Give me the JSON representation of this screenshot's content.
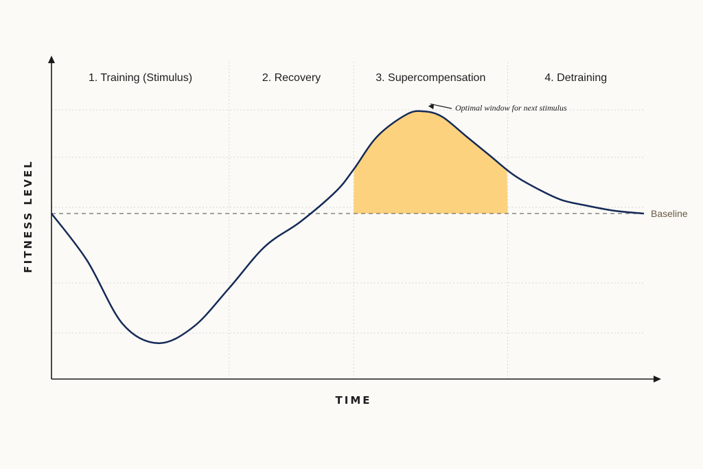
{
  "chart_data": {
    "type": "line",
    "title": "",
    "xlabel": "TIME",
    "ylabel": "FITNESS LEVEL",
    "phases": [
      {
        "label": "1. Training (Stimulus)",
        "start": 0,
        "end": 30
      },
      {
        "label": "2. Recovery",
        "start": 30,
        "end": 51
      },
      {
        "label": "3. Supercompensation",
        "start": 51,
        "end": 77
      },
      {
        "label": "4. Detraining",
        "start": 77,
        "end": 100
      }
    ],
    "xlim": [
      0,
      100
    ],
    "ylim": [
      -60,
      55
    ],
    "baseline": {
      "value": 0,
      "label": "Baseline",
      "style": "dashed"
    },
    "series": [
      {
        "points": [
          [
            0,
            0
          ],
          [
            6,
            -17
          ],
          [
            12,
            -40
          ],
          [
            18,
            -47
          ],
          [
            24,
            -41
          ],
          [
            30,
            -27
          ],
          [
            36,
            -12
          ],
          [
            42,
            -3
          ],
          [
            48,
            8
          ],
          [
            51,
            16
          ],
          [
            55,
            28
          ],
          [
            60,
            36
          ],
          [
            63,
            37
          ],
          [
            66,
            35
          ],
          [
            70,
            28
          ],
          [
            74,
            21
          ],
          [
            78,
            14
          ],
          [
            82,
            9
          ],
          [
            86,
            5
          ],
          [
            90,
            3
          ],
          [
            95,
            1
          ],
          [
            100,
            0
          ]
        ]
      }
    ],
    "highlight": {
      "x_start": 51,
      "x_end": 77,
      "color": "#fdd27e"
    },
    "annotation": {
      "text": "Optimal window for next stimulus",
      "x": 63,
      "y": 37
    },
    "grid": "dotted",
    "colors": {
      "line": "#152a57",
      "axis": "#1a1a1a",
      "baseline": "#7a7a7a",
      "grid": "#d6d6d6"
    }
  }
}
